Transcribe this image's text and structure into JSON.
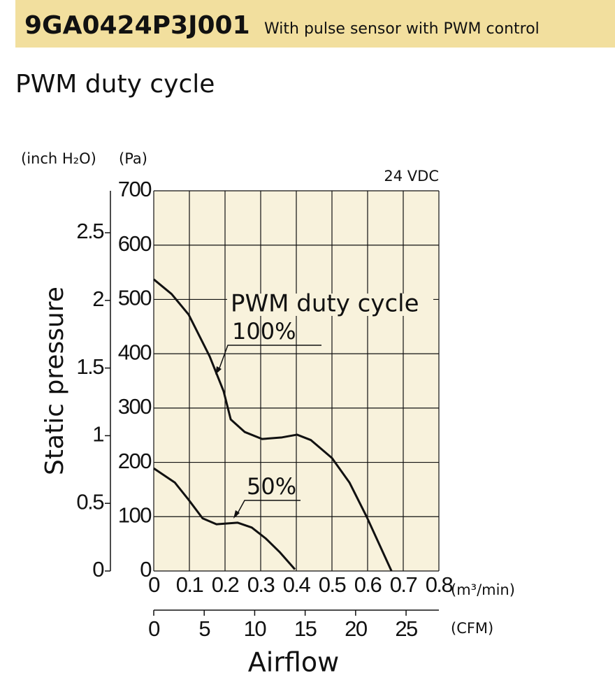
{
  "chart_data": {
    "type": "line",
    "header_title": "9GA0424P3J001",
    "header_subtitle": "With pulse sensor with PWM control",
    "title": "PWM duty cycle",
    "ylabel": "Static pressure",
    "xlabel": "Airflow",
    "y_unit": "(Pa)",
    "y2_unit": "(inch H₂O)",
    "x_unit": "(m³/min)",
    "x2_unit": "(CFM)",
    "note": "24 VDC",
    "annotation": "PWM duty cycle",
    "series": [
      {
        "name": "100%",
        "color": "#111111",
        "x": [
          0,
          0.05,
          0.098,
          0.157,
          0.196,
          0.216,
          0.255,
          0.304,
          0.36,
          0.402,
          0.441,
          0.5,
          0.549,
          0.598,
          0.667
        ],
        "values": [
          537,
          510,
          472,
          395,
          331,
          279,
          256,
          243,
          246,
          251,
          241,
          208,
          163,
          99,
          0
        ]
      },
      {
        "name": "50%",
        "color": "#111111",
        "x": [
          0,
          0.059,
          0.098,
          0.137,
          0.176,
          0.235,
          0.275,
          0.314,
          0.353,
          0.396
        ],
        "values": [
          189,
          163,
          131,
          97,
          86,
          89,
          80,
          60,
          35,
          3
        ]
      }
    ],
    "xlim": [
      0,
      0.8
    ],
    "xticks": [
      0,
      0.1,
      0.2,
      0.3,
      0.4,
      0.5,
      0.6,
      0.7,
      0.8
    ],
    "ylim": [
      0,
      700
    ],
    "yticks": [
      0,
      100,
      200,
      300,
      400,
      500,
      600,
      700
    ],
    "x2lim": [
      0,
      28.25
    ],
    "x2ticks": [
      0,
      5,
      10,
      15,
      20,
      25
    ],
    "y2lim": [
      0,
      2.81
    ],
    "y2ticks": [
      0,
      0.5,
      1.0,
      1.5,
      2.0,
      2.5
    ],
    "grid": true
  }
}
